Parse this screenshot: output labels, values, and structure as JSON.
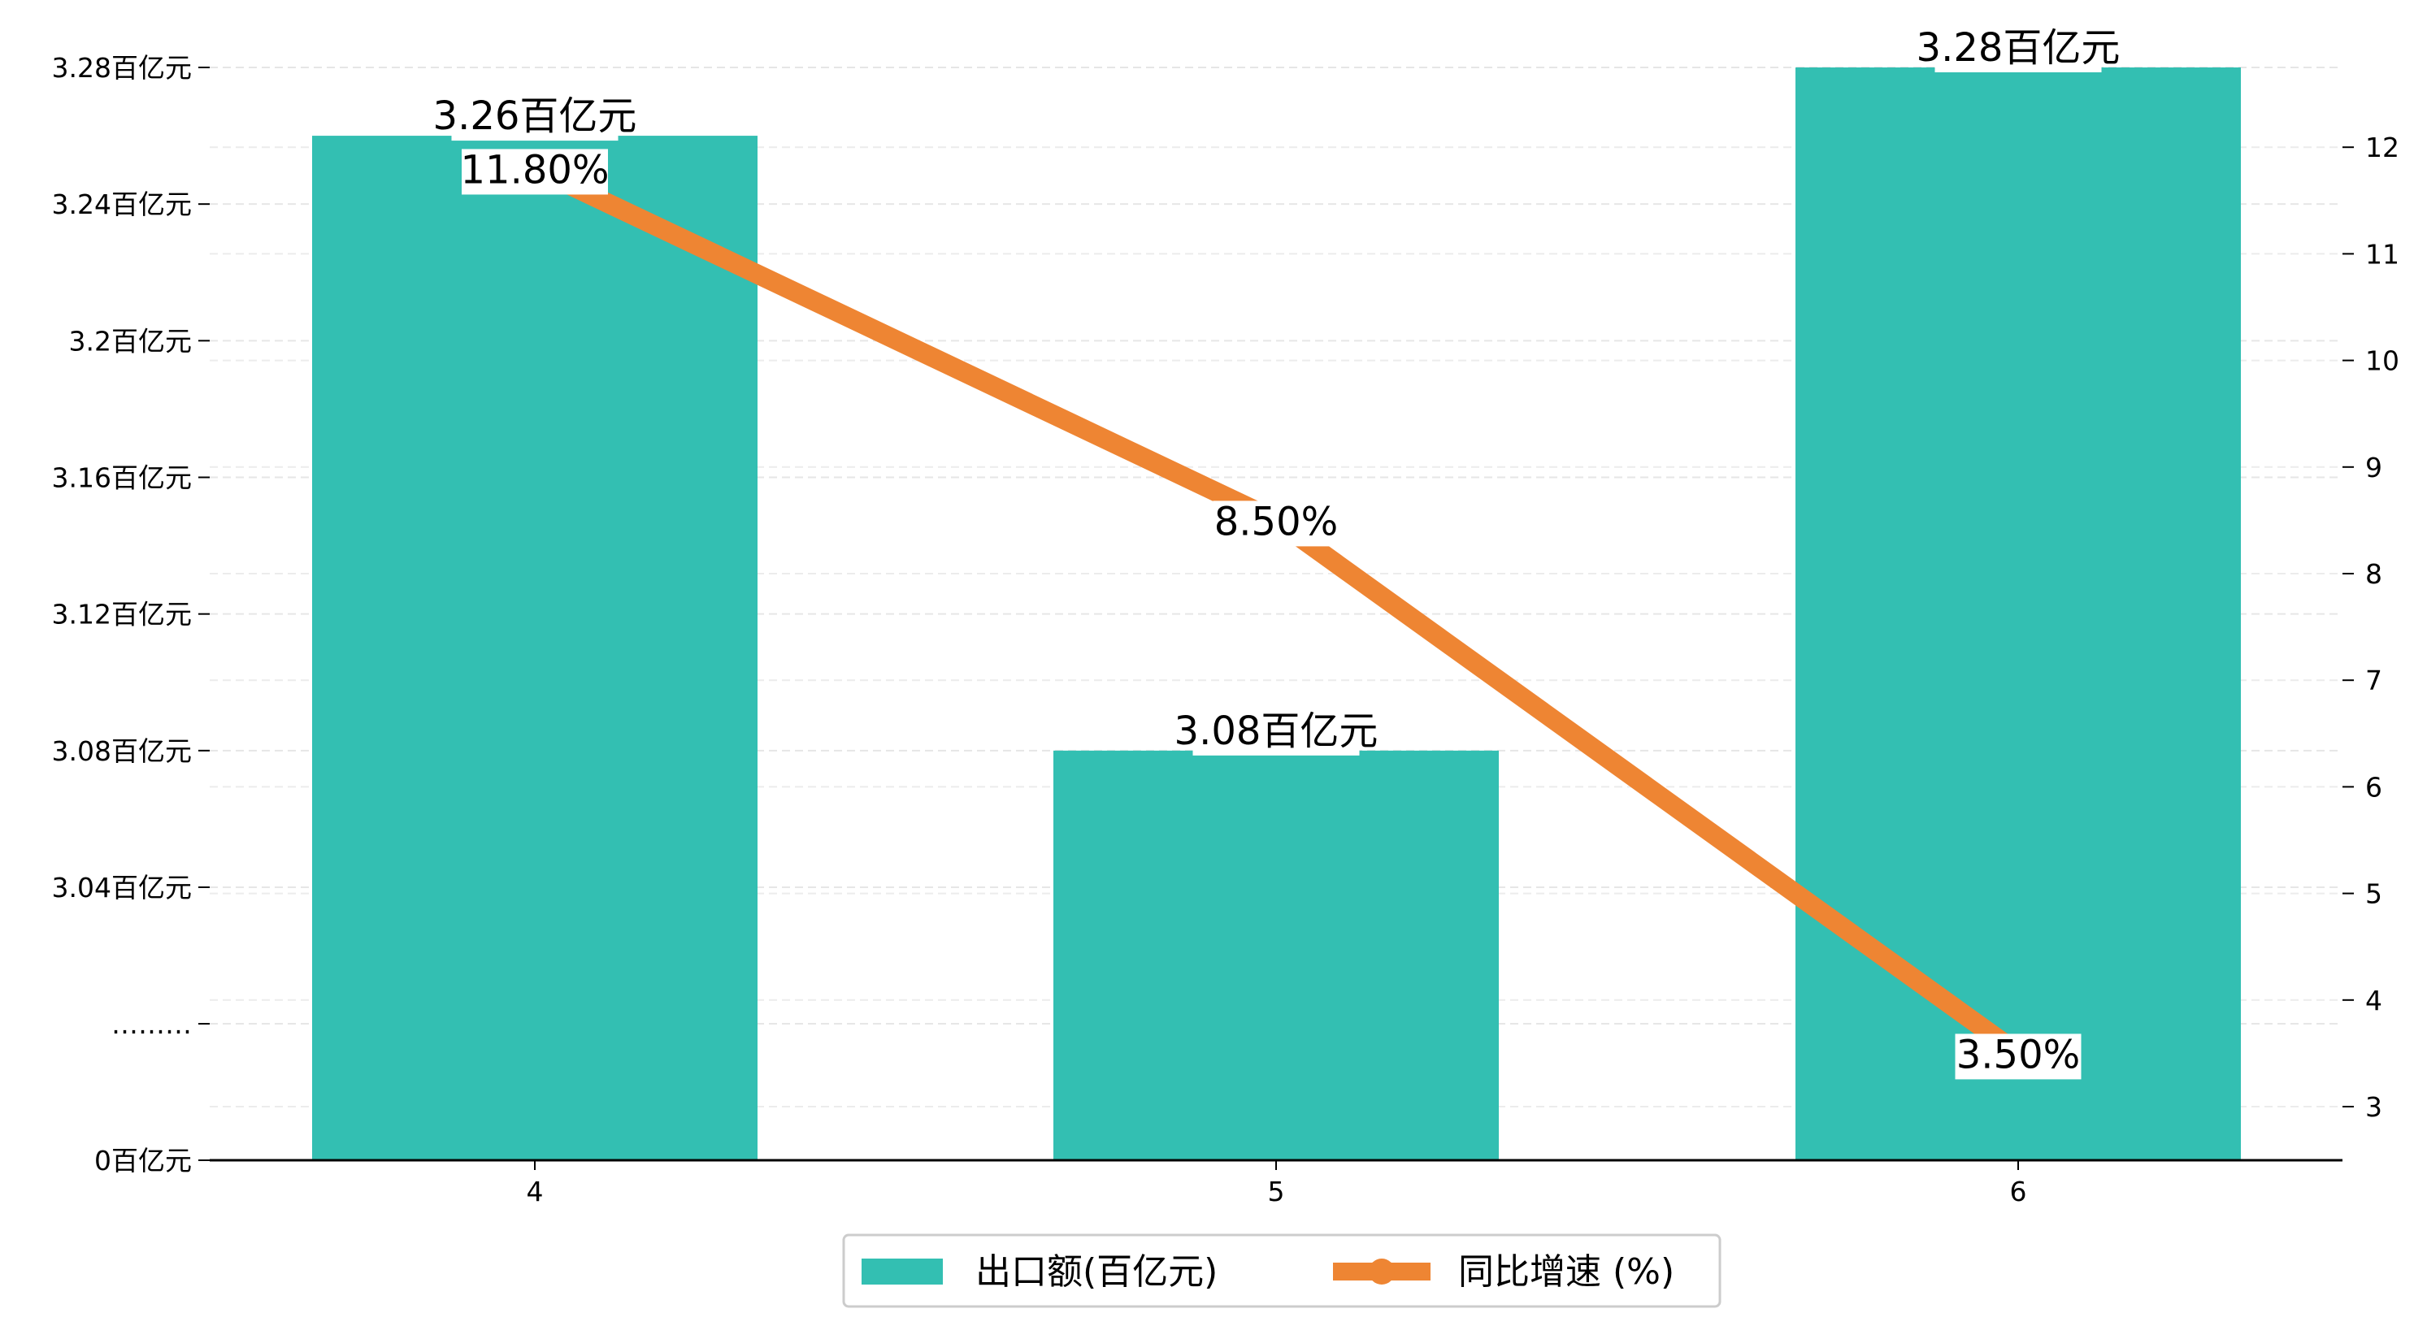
{
  "chart_data": {
    "type": "bar",
    "categories": [
      "4",
      "5",
      "6"
    ],
    "series": [
      {
        "name": "出口额(百亿元)",
        "kind": "bar",
        "axis": "left",
        "values": [
          3.26,
          3.08,
          3.28
        ],
        "labels": [
          "3.26百亿元",
          "3.08百亿元",
          "3.28百亿元"
        ],
        "color": "#33BFB2"
      },
      {
        "name": "同比增速 (%)",
        "kind": "line",
        "axis": "right",
        "values": [
          11.8,
          8.5,
          3.5
        ],
        "labels": [
          "11.80%",
          "8.50%",
          "3.50%"
        ],
        "color": "#EE8533"
      }
    ],
    "left_axis": {
      "broken": true,
      "ticks": [
        {
          "value": 0,
          "label": "0百亿元"
        },
        {
          "value": null,
          "label": "………"
        },
        {
          "value": 3.04,
          "label": "3.04百亿元"
        },
        {
          "value": 3.08,
          "label": "3.08百亿元"
        },
        {
          "value": 3.12,
          "label": "3.12百亿元"
        },
        {
          "value": 3.16,
          "label": "3.16百亿元"
        },
        {
          "value": 3.2,
          "label": "3.2百亿元"
        },
        {
          "value": 3.24,
          "label": "3.24百亿元"
        },
        {
          "value": 3.28,
          "label": "3.28百亿元"
        }
      ]
    },
    "right_axis": {
      "ticks": [
        3,
        4,
        5,
        6,
        7,
        8,
        9,
        10,
        11,
        12
      ],
      "ylim": [
        2.5,
        12.8
      ]
    },
    "grid": true,
    "legend_position": "bottom-center",
    "title": "",
    "xlabel": "",
    "ylabel": ""
  }
}
